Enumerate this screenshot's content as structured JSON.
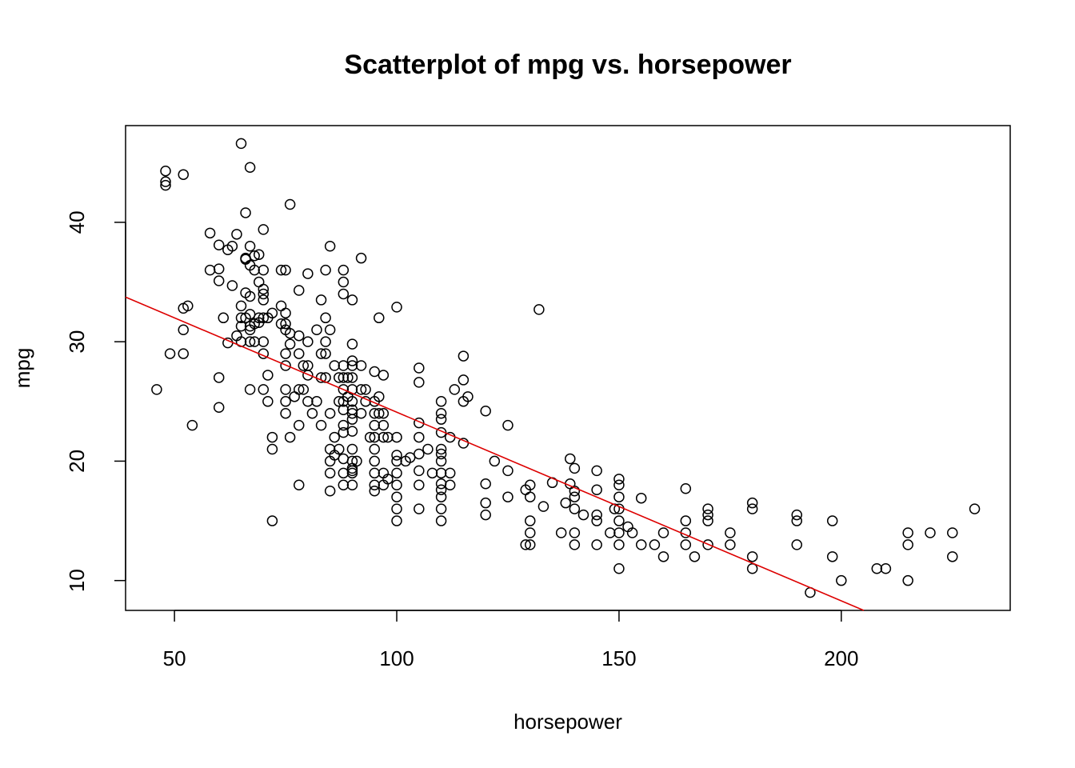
{
  "chart_data": {
    "type": "scatter",
    "title": "Scatterplot of mpg vs. horsepower",
    "xlabel": "horsepower",
    "ylabel": "mpg",
    "xlim": [
      39,
      238
    ],
    "ylim": [
      7.5,
      48.1
    ],
    "xticks": [
      50,
      100,
      150,
      200
    ],
    "yticks": [
      10,
      20,
      30,
      40
    ],
    "grid": false,
    "legend": "none",
    "colors": {
      "points": "#000000",
      "fit_line": "#dd0000"
    },
    "fit_line": {
      "intercept": 39.9,
      "slope": -0.158
    },
    "points": [
      [
        46,
        26
      ],
      [
        48,
        44.3
      ],
      [
        48,
        43.4
      ],
      [
        48,
        43.1
      ],
      [
        49,
        29
      ],
      [
        52,
        44
      ],
      [
        52,
        31
      ],
      [
        52,
        32.8
      ],
      [
        52,
        29
      ],
      [
        53,
        33
      ],
      [
        54,
        23
      ],
      [
        58,
        39.1
      ],
      [
        58,
        36
      ],
      [
        60,
        36.1
      ],
      [
        60,
        35.1
      ],
      [
        60,
        38.1
      ],
      [
        60,
        27
      ],
      [
        60,
        24.5
      ],
      [
        61,
        32
      ],
      [
        62,
        37.7
      ],
      [
        62,
        29.9
      ],
      [
        63,
        38
      ],
      [
        63,
        34.7
      ],
      [
        64,
        30.5
      ],
      [
        64,
        39
      ],
      [
        65,
        33
      ],
      [
        65,
        32
      ],
      [
        65,
        31.3
      ],
      [
        65,
        30
      ],
      [
        65,
        46.6
      ],
      [
        66,
        40.8
      ],
      [
        66,
        37
      ],
      [
        66,
        36.9
      ],
      [
        66,
        34.1
      ],
      [
        66,
        32
      ],
      [
        67,
        44.6
      ],
      [
        67,
        38
      ],
      [
        67,
        36.4
      ],
      [
        67,
        33.8
      ],
      [
        67,
        32.3
      ],
      [
        67,
        31.3
      ],
      [
        67,
        31
      ],
      [
        67,
        30
      ],
      [
        67,
        26
      ],
      [
        68,
        37.2
      ],
      [
        68,
        36
      ],
      [
        68,
        31.5
      ],
      [
        68,
        30
      ],
      [
        69,
        37.3
      ],
      [
        69,
        35
      ],
      [
        69,
        32
      ],
      [
        69,
        31.6
      ],
      [
        70,
        39.4
      ],
      [
        70,
        36
      ],
      [
        70,
        34.4
      ],
      [
        70,
        34
      ],
      [
        70,
        33.5
      ],
      [
        70,
        32
      ],
      [
        70,
        30
      ],
      [
        70,
        29
      ],
      [
        70,
        26
      ],
      [
        71,
        32
      ],
      [
        71,
        27.2
      ],
      [
        71,
        25
      ],
      [
        72,
        32.4
      ],
      [
        72,
        22
      ],
      [
        72,
        21
      ],
      [
        72,
        15
      ],
      [
        74,
        33
      ],
      [
        74,
        31.5
      ],
      [
        74,
        36
      ],
      [
        75,
        36
      ],
      [
        75,
        32.4
      ],
      [
        75,
        31.5
      ],
      [
        75,
        31
      ],
      [
        75,
        29
      ],
      [
        75,
        28
      ],
      [
        75,
        26
      ],
      [
        75,
        25
      ],
      [
        75,
        24
      ],
      [
        76,
        41.5
      ],
      [
        76,
        30.7
      ],
      [
        76,
        29.8
      ],
      [
        76,
        22
      ],
      [
        77,
        25.4
      ],
      [
        78,
        34.3
      ],
      [
        78,
        30.5
      ],
      [
        78,
        29
      ],
      [
        78,
        26
      ],
      [
        78,
        23
      ],
      [
        78,
        18
      ],
      [
        79,
        28
      ],
      [
        79,
        26
      ],
      [
        80,
        35.7
      ],
      [
        80,
        30
      ],
      [
        80,
        28
      ],
      [
        80,
        27.2
      ],
      [
        80,
        25
      ],
      [
        81,
        24
      ],
      [
        82,
        31
      ],
      [
        82,
        25
      ],
      [
        83,
        33.5
      ],
      [
        83,
        29
      ],
      [
        83,
        27
      ],
      [
        83,
        23
      ],
      [
        84,
        36
      ],
      [
        84,
        32
      ],
      [
        84,
        30
      ],
      [
        84,
        27
      ],
      [
        84,
        29
      ],
      [
        85,
        38
      ],
      [
        85,
        31
      ],
      [
        85,
        24
      ],
      [
        85,
        21
      ],
      [
        85,
        20
      ],
      [
        85,
        19
      ],
      [
        85,
        17.5
      ],
      [
        86,
        28
      ],
      [
        86,
        22
      ],
      [
        86,
        20.5
      ],
      [
        87,
        27
      ],
      [
        87,
        25
      ],
      [
        87,
        21
      ],
      [
        88,
        36
      ],
      [
        88,
        35
      ],
      [
        88,
        34
      ],
      [
        88,
        28
      ],
      [
        88,
        27
      ],
      [
        88,
        26
      ],
      [
        88,
        25
      ],
      [
        88,
        24.3
      ],
      [
        88,
        23
      ],
      [
        88,
        22.4
      ],
      [
        88,
        20.2
      ],
      [
        88,
        19
      ],
      [
        88,
        18
      ],
      [
        89,
        25.4
      ],
      [
        89,
        27
      ],
      [
        90,
        33.5
      ],
      [
        90,
        29.8
      ],
      [
        90,
        28.4
      ],
      [
        90,
        28
      ],
      [
        90,
        27
      ],
      [
        90,
        26
      ],
      [
        90,
        25
      ],
      [
        90,
        24.3
      ],
      [
        90,
        24
      ],
      [
        90,
        23.5
      ],
      [
        90,
        22.5
      ],
      [
        90,
        21
      ],
      [
        90,
        20
      ],
      [
        90,
        19.4
      ],
      [
        90,
        19.2
      ],
      [
        90,
        19
      ],
      [
        90,
        18
      ],
      [
        91,
        20
      ],
      [
        92,
        37
      ],
      [
        92,
        28
      ],
      [
        92,
        26
      ],
      [
        92,
        24
      ],
      [
        93,
        26
      ],
      [
        93,
        25
      ],
      [
        94,
        22
      ],
      [
        95,
        27.5
      ],
      [
        95,
        25
      ],
      [
        95,
        24
      ],
      [
        95,
        23
      ],
      [
        95,
        22
      ],
      [
        95,
        21
      ],
      [
        95,
        20
      ],
      [
        95,
        19
      ],
      [
        95,
        18
      ],
      [
        95,
        17.5
      ],
      [
        96,
        32
      ],
      [
        96,
        25.4
      ],
      [
        96,
        24
      ],
      [
        97,
        27.2
      ],
      [
        97,
        24
      ],
      [
        97,
        23
      ],
      [
        97,
        22
      ],
      [
        97,
        18
      ],
      [
        97,
        19
      ],
      [
        98,
        22
      ],
      [
        98,
        18.5
      ],
      [
        100,
        32.9
      ],
      [
        100,
        22
      ],
      [
        100,
        20.5
      ],
      [
        100,
        20
      ],
      [
        100,
        19
      ],
      [
        100,
        18
      ],
      [
        100,
        17
      ],
      [
        100,
        16
      ],
      [
        100,
        15
      ],
      [
        102,
        20
      ],
      [
        103,
        20.3
      ],
      [
        105,
        27.8
      ],
      [
        105,
        26.6
      ],
      [
        105,
        23.2
      ],
      [
        105,
        22
      ],
      [
        105,
        20.6
      ],
      [
        105,
        19.2
      ],
      [
        105,
        18
      ],
      [
        105,
        16
      ],
      [
        107,
        21
      ],
      [
        108,
        19
      ],
      [
        110,
        25
      ],
      [
        110,
        24
      ],
      [
        110,
        23.5
      ],
      [
        110,
        22.4
      ],
      [
        110,
        21
      ],
      [
        110,
        20.6
      ],
      [
        110,
        20
      ],
      [
        110,
        19
      ],
      [
        110,
        18.1
      ],
      [
        110,
        17.6
      ],
      [
        110,
        17
      ],
      [
        110,
        16
      ],
      [
        110,
        15
      ],
      [
        112,
        22
      ],
      [
        112,
        19
      ],
      [
        112,
        18
      ],
      [
        113,
        26
      ],
      [
        115,
        28.8
      ],
      [
        115,
        26.8
      ],
      [
        115,
        25
      ],
      [
        115,
        21.5
      ],
      [
        116,
        25.4
      ],
      [
        120,
        24.2
      ],
      [
        120,
        18.1
      ],
      [
        120,
        16.5
      ],
      [
        120,
        15.5
      ],
      [
        122,
        20
      ],
      [
        125,
        23
      ],
      [
        125,
        19.2
      ],
      [
        125,
        17
      ],
      [
        129,
        13
      ],
      [
        129,
        17.6
      ],
      [
        130,
        18
      ],
      [
        130,
        17
      ],
      [
        130,
        15
      ],
      [
        130,
        14
      ],
      [
        130,
        13
      ],
      [
        132,
        32.7
      ],
      [
        133,
        16.2
      ],
      [
        135,
        18.2
      ],
      [
        137,
        14
      ],
      [
        138,
        16.5
      ],
      [
        139,
        20.2
      ],
      [
        139,
        18.1
      ],
      [
        140,
        19.4
      ],
      [
        140,
        17.5
      ],
      [
        140,
        17
      ],
      [
        140,
        16
      ],
      [
        140,
        14
      ],
      [
        140,
        13
      ],
      [
        142,
        15.5
      ],
      [
        145,
        19.2
      ],
      [
        145,
        17.6
      ],
      [
        145,
        15.5
      ],
      [
        145,
        15
      ],
      [
        145,
        13
      ],
      [
        148,
        14
      ],
      [
        149,
        16
      ],
      [
        150,
        18.5
      ],
      [
        150,
        18
      ],
      [
        150,
        17
      ],
      [
        150,
        16
      ],
      [
        150,
        15
      ],
      [
        150,
        14
      ],
      [
        150,
        13
      ],
      [
        150,
        11
      ],
      [
        152,
        14.5
      ],
      [
        153,
        14
      ],
      [
        155,
        16.9
      ],
      [
        155,
        13
      ],
      [
        158,
        13
      ],
      [
        160,
        14
      ],
      [
        160,
        12
      ],
      [
        165,
        17.7
      ],
      [
        165,
        15
      ],
      [
        165,
        14
      ],
      [
        165,
        13
      ],
      [
        167,
        12
      ],
      [
        170,
        16
      ],
      [
        170,
        15.5
      ],
      [
        170,
        15
      ],
      [
        170,
        13
      ],
      [
        175,
        14
      ],
      [
        175,
        13
      ],
      [
        180,
        16.5
      ],
      [
        180,
        16
      ],
      [
        180,
        12
      ],
      [
        180,
        11
      ],
      [
        190,
        15.5
      ],
      [
        190,
        15
      ],
      [
        190,
        13
      ],
      [
        193,
        9
      ],
      [
        198,
        15
      ],
      [
        198,
        12
      ],
      [
        200,
        10
      ],
      [
        208,
        11
      ],
      [
        210,
        11
      ],
      [
        215,
        14
      ],
      [
        215,
        13
      ],
      [
        215,
        10
      ],
      [
        220,
        14
      ],
      [
        225,
        14
      ],
      [
        225,
        12
      ],
      [
        230,
        16
      ]
    ]
  }
}
